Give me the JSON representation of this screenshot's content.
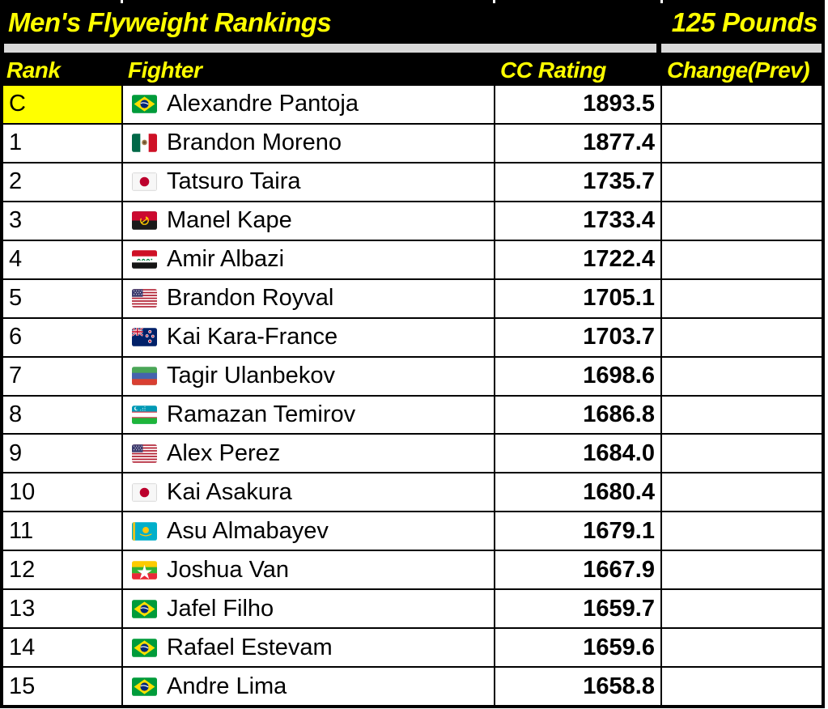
{
  "title": "Men's Flyweight Rankings",
  "weight_class": "125 Pounds",
  "columns": {
    "rank": "Rank",
    "fighter": "Fighter",
    "rating": "CC Rating",
    "change": "Change(Prev)"
  },
  "colors": {
    "header_bg": "#000000",
    "header_text": "#FFFF00",
    "champion_cell_bg": "#FFFF00",
    "divider_gray": "#D9D9D9",
    "row_bg": "#FFFFFF",
    "grid_line": "#000000",
    "body_text": "#000000"
  },
  "rows": [
    {
      "rank": "C",
      "fighter": "Alexandre Pantoja",
      "flag": "brazil",
      "rating": "1893.5",
      "change": "",
      "highlight": true
    },
    {
      "rank": "1",
      "fighter": "Brandon Moreno",
      "flag": "mexico",
      "rating": "1877.4",
      "change": "",
      "highlight": false
    },
    {
      "rank": "2",
      "fighter": "Tatsuro Taira",
      "flag": "japan",
      "rating": "1735.7",
      "change": "",
      "highlight": false
    },
    {
      "rank": "3",
      "fighter": "Manel Kape",
      "flag": "angola",
      "rating": "1733.4",
      "change": "",
      "highlight": false
    },
    {
      "rank": "4",
      "fighter": "Amir Albazi",
      "flag": "iraq",
      "rating": "1722.4",
      "change": "",
      "highlight": false
    },
    {
      "rank": "5",
      "fighter": "Brandon Royval",
      "flag": "usa",
      "rating": "1705.1",
      "change": "",
      "highlight": false
    },
    {
      "rank": "6",
      "fighter": "Kai Kara-France",
      "flag": "new-zealand",
      "rating": "1703.7",
      "change": "",
      "highlight": false
    },
    {
      "rank": "7",
      "fighter": "Tagir Ulanbekov",
      "flag": "dagestan",
      "rating": "1698.6",
      "change": "",
      "highlight": false
    },
    {
      "rank": "8",
      "fighter": "Ramazan Temirov",
      "flag": "uzbekistan",
      "rating": "1686.8",
      "change": "",
      "highlight": false
    },
    {
      "rank": "9",
      "fighter": "Alex Perez",
      "flag": "usa",
      "rating": "1684.0",
      "change": "",
      "highlight": false
    },
    {
      "rank": "10",
      "fighter": "Kai Asakura",
      "flag": "japan",
      "rating": "1680.4",
      "change": "",
      "highlight": false
    },
    {
      "rank": "11",
      "fighter": "Asu Almabayev",
      "flag": "kazakhstan",
      "rating": "1679.1",
      "change": "",
      "highlight": false
    },
    {
      "rank": "12",
      "fighter": "Joshua Van",
      "flag": "myanmar",
      "rating": "1667.9",
      "change": "",
      "highlight": false
    },
    {
      "rank": "13",
      "fighter": "Jafel Filho",
      "flag": "brazil",
      "rating": "1659.7",
      "change": "",
      "highlight": false
    },
    {
      "rank": "14",
      "fighter": "Rafael Estevam",
      "flag": "brazil",
      "rating": "1659.6",
      "change": "",
      "highlight": false
    },
    {
      "rank": "15",
      "fighter": "Andre Lima",
      "flag": "brazil",
      "rating": "1658.8",
      "change": "",
      "highlight": false
    }
  ]
}
